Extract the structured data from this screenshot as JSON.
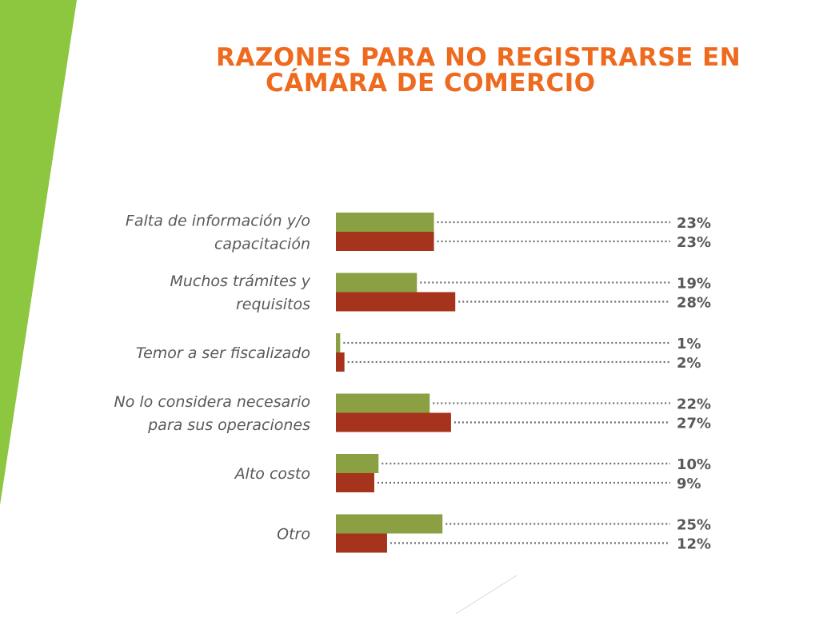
{
  "slide": {
    "title_line_1": "RAZONES PARA NO REGISTRARSE EN",
    "title_line_2": "CÁMARA DE COMERCIO"
  },
  "colors": {
    "title": "#ee6a1f",
    "accent_strip": "#8dc63f",
    "series_1": "#8aa043",
    "series_2": "#a6331c",
    "leader": "#6d6e71",
    "text": "#58595b"
  },
  "chart_data": {
    "type": "bar",
    "orientation": "horizontal",
    "title": "RAZONES PARA NO REGISTRARSE EN CÁMARA DE COMERCIO",
    "categories": [
      [
        "Falta de información y/o",
        "capacitación"
      ],
      [
        "Muchos trámites y",
        "requisitos"
      ],
      [
        "Temor a ser fiscalizado"
      ],
      [
        "No lo considera necesario",
        "para sus operaciones"
      ],
      [
        "Alto costo"
      ],
      [
        "Otro"
      ]
    ],
    "series": [
      {
        "values": [
          23,
          19,
          1,
          22,
          10,
          25
        ],
        "labels": [
          "23%",
          "19%",
          "1%",
          "22%",
          "10%",
          "25%"
        ],
        "color": "#8aa043"
      },
      {
        "values": [
          23,
          28,
          2,
          27,
          9,
          12
        ],
        "labels": [
          "23%",
          "28%",
          "2%",
          "27%",
          "9%",
          "12%"
        ],
        "color": "#a6331c"
      }
    ],
    "unit": "%",
    "xlim": [
      0,
      100
    ],
    "grid": false,
    "legend": "none"
  }
}
